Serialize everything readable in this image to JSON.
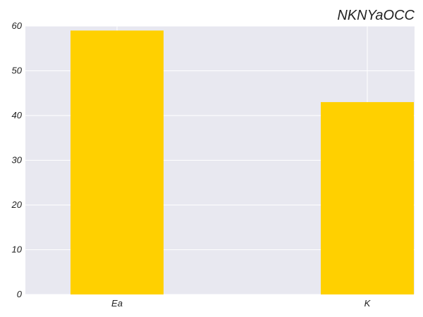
{
  "chart_data": {
    "type": "bar",
    "title": "NKNYaOCC",
    "xlabel": "",
    "ylabel": "",
    "categories": [
      "Ea",
      "K"
    ],
    "values": [
      59,
      43
    ],
    "ylim": [
      0,
      60
    ],
    "yticks": [
      0,
      10,
      20,
      30,
      40,
      50,
      60
    ],
    "grid": true,
    "legend": "none",
    "colors": {
      "bar": "#ffd000",
      "plot_background": "#e8e8f0",
      "grid": "#ffffff",
      "text": "#222222"
    }
  }
}
